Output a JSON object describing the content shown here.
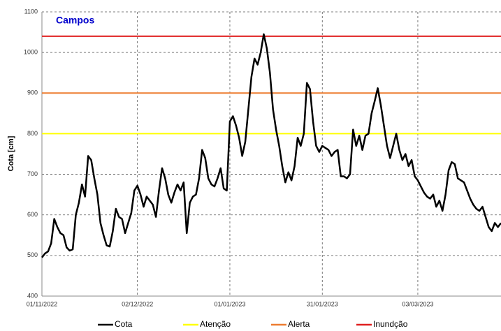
{
  "chart_data": {
    "type": "line",
    "title": "Campos",
    "y_label": "Cota [cm]",
    "x": [
      "2022-11-01",
      "2022-11-02",
      "2022-11-03",
      "2022-11-04",
      "2022-11-05",
      "2022-11-06",
      "2022-11-07",
      "2022-11-08",
      "2022-11-09",
      "2022-11-10",
      "2022-11-11",
      "2022-11-12",
      "2022-11-13",
      "2022-11-14",
      "2022-11-15",
      "2022-11-16",
      "2022-11-17",
      "2022-11-18",
      "2022-11-19",
      "2022-11-20",
      "2022-11-21",
      "2022-11-22",
      "2022-11-23",
      "2022-11-24",
      "2022-11-25",
      "2022-11-26",
      "2022-11-27",
      "2022-11-28",
      "2022-11-29",
      "2022-11-30",
      "2022-12-01",
      "2022-12-02",
      "2022-12-03",
      "2022-12-04",
      "2022-12-05",
      "2022-12-06",
      "2022-12-07",
      "2022-12-08",
      "2022-12-09",
      "2022-12-10",
      "2022-12-11",
      "2022-12-12",
      "2022-12-13",
      "2022-12-14",
      "2022-12-15",
      "2022-12-16",
      "2022-12-17",
      "2022-12-18",
      "2022-12-19",
      "2022-12-20",
      "2022-12-21",
      "2022-12-22",
      "2022-12-23",
      "2022-12-24",
      "2022-12-25",
      "2022-12-26",
      "2022-12-27",
      "2022-12-28",
      "2022-12-29",
      "2022-12-30",
      "2022-12-31",
      "2023-01-01",
      "2023-01-02",
      "2023-01-03",
      "2023-01-04",
      "2023-01-05",
      "2023-01-06",
      "2023-01-07",
      "2023-01-08",
      "2023-01-09",
      "2023-01-10",
      "2023-01-11",
      "2023-01-12",
      "2023-01-13",
      "2023-01-14",
      "2023-01-15",
      "2023-01-16",
      "2023-01-17",
      "2023-01-18",
      "2023-01-19",
      "2023-01-20",
      "2023-01-21",
      "2023-01-22",
      "2023-01-23",
      "2023-01-24",
      "2023-01-25",
      "2023-01-26",
      "2023-01-27",
      "2023-01-28",
      "2023-01-29",
      "2023-01-30",
      "2023-01-31",
      "2023-02-01",
      "2023-02-02",
      "2023-02-03",
      "2023-02-04",
      "2023-02-05",
      "2023-02-06",
      "2023-02-07",
      "2023-02-08",
      "2023-02-09",
      "2023-02-10",
      "2023-02-11",
      "2023-02-12",
      "2023-02-13",
      "2023-02-14",
      "2023-02-15",
      "2023-02-16",
      "2023-02-17",
      "2023-02-18",
      "2023-02-19",
      "2023-02-20",
      "2023-02-21",
      "2023-02-22",
      "2023-02-23",
      "2023-02-24",
      "2023-02-25",
      "2023-02-26",
      "2023-02-27",
      "2023-02-28",
      "2023-03-01",
      "2023-03-02",
      "2023-03-03",
      "2023-03-04",
      "2023-03-05",
      "2023-03-06",
      "2023-03-07",
      "2023-03-08",
      "2023-03-09",
      "2023-03-10",
      "2023-03-11",
      "2023-03-12",
      "2023-03-13",
      "2023-03-14",
      "2023-03-15",
      "2023-03-16",
      "2023-03-17",
      "2023-03-18",
      "2023-03-19",
      "2023-03-20",
      "2023-03-21",
      "2023-03-22",
      "2023-03-23",
      "2023-03-24",
      "2023-03-25",
      "2023-03-26",
      "2023-03-27",
      "2023-03-28",
      "2023-03-29",
      "2023-03-30"
    ],
    "series": [
      {
        "name": "Cota",
        "color": "#000000",
        "values": [
          495,
          505,
          510,
          530,
          590,
          570,
          555,
          550,
          520,
          512,
          515,
          600,
          630,
          675,
          645,
          745,
          735,
          690,
          650,
          580,
          550,
          525,
          522,
          560,
          615,
          595,
          590,
          555,
          580,
          605,
          660,
          672,
          650,
          620,
          645,
          635,
          625,
          595,
          660,
          715,
          690,
          650,
          630,
          655,
          675,
          660,
          680,
          555,
          630,
          645,
          650,
          690,
          760,
          740,
          690,
          675,
          670,
          690,
          715,
          665,
          660,
          830,
          843,
          820,
          790,
          745,
          780,
          860,
          940,
          985,
          970,
          1000,
          1045,
          1010,
          950,
          860,
          810,
          770,
          720,
          680,
          705,
          685,
          720,
          790,
          770,
          800,
          925,
          910,
          830,
          770,
          755,
          770,
          765,
          760,
          745,
          755,
          760,
          695,
          695,
          690,
          700,
          810,
          770,
          795,
          760,
          795,
          800,
          850,
          880,
          912,
          870,
          820,
          770,
          740,
          770,
          800,
          760,
          735,
          750,
          720,
          735,
          695,
          685,
          670,
          655,
          645,
          640,
          650,
          620,
          635,
          610,
          650,
          710,
          730,
          725,
          690,
          685,
          680,
          660,
          640,
          625,
          615,
          610,
          620,
          595,
          570,
          560,
          580,
          570,
          580
        ]
      }
    ],
    "thresholds": [
      {
        "name": "Atenção",
        "color": "#ffff00",
        "value": 800
      },
      {
        "name": "Alerta",
        "color": "#ed7d31",
        "value": 900
      },
      {
        "name": "Inundção",
        "color": "#e02020",
        "value": 1040
      }
    ],
    "xlim": [
      "2022-11-01",
      "2023-03-30"
    ],
    "xticks": [
      {
        "value": "2022-11-01",
        "label": "01/11/2022"
      },
      {
        "value": "2022-12-02",
        "label": "02/12/2022"
      },
      {
        "value": "2023-01-01",
        "label": "01/01/2023"
      },
      {
        "value": "2023-01-31",
        "label": "31/01/2023"
      },
      {
        "value": "2023-03-03",
        "label": "03/03/2023"
      }
    ],
    "ylim": [
      400,
      1100
    ],
    "yticks": [
      400,
      500,
      600,
      700,
      800,
      900,
      1000,
      1100
    ],
    "grid": true,
    "legend": "bottom"
  }
}
